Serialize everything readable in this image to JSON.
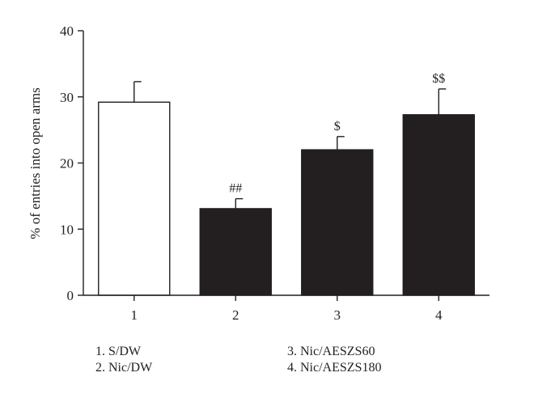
{
  "chart_data": {
    "type": "bar",
    "ylabel": "% of entries into open arms",
    "xlabel": "",
    "title": "",
    "ylim": [
      0,
      40
    ],
    "yticks": [
      0,
      10,
      20,
      30,
      40
    ],
    "categories": [
      "1",
      "2",
      "3",
      "4"
    ],
    "values": [
      29.2,
      13.1,
      22.0,
      27.3
    ],
    "errors": [
      3.1,
      1.5,
      2.0,
      3.9
    ],
    "fills": [
      "#ffffff",
      "#231f20",
      "#231f20",
      "#231f20"
    ],
    "annotations": [
      "",
      "##",
      "$",
      "$$"
    ],
    "legend": [
      "1. S/DW",
      "2. Nic/DW",
      "3. Nic/AESZS60",
      "4. Nic/AESZS180"
    ]
  }
}
